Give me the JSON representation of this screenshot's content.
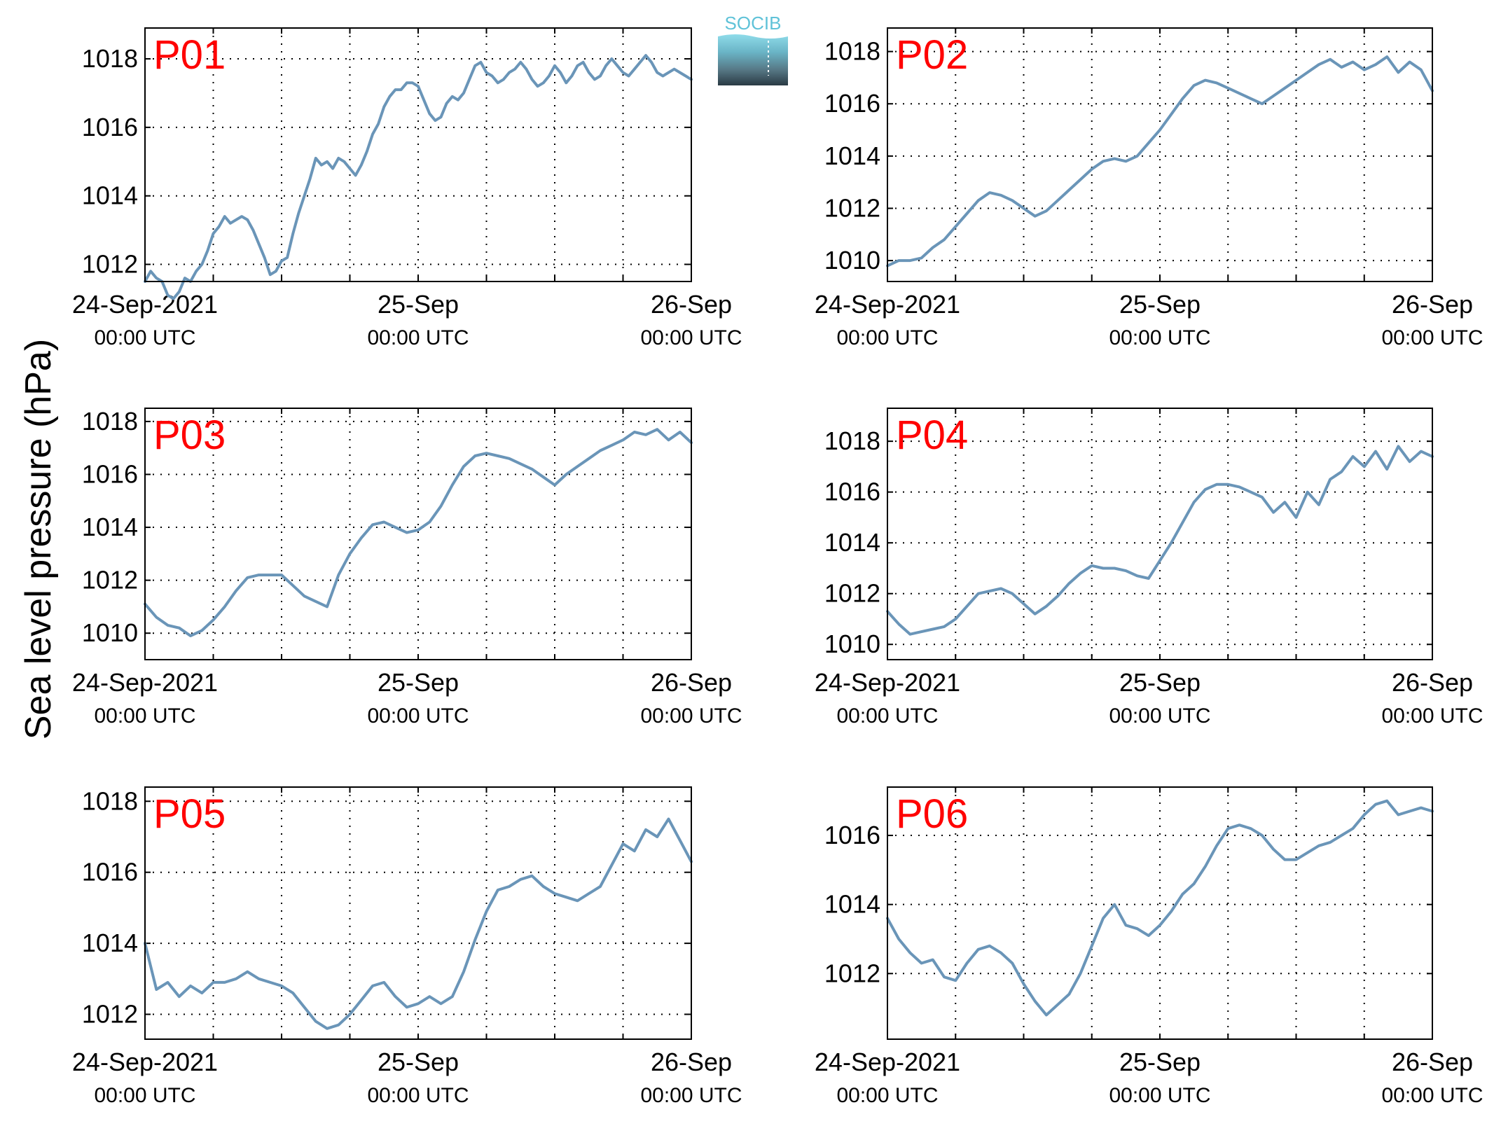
{
  "figure": {
    "ylabel": "Sea level pressure (hPa)",
    "logo_text": "SOCIB",
    "line_color": "#6a95b8",
    "panel_label_color": "#ff0000",
    "x_ticks": [
      {
        "line1": "24-Sep-2021",
        "line2": "00:00 UTC"
      },
      {
        "line1": "25-Sep",
        "line2": "00:00 UTC"
      },
      {
        "line1": "26-Sep",
        "line2": "00:00 UTC"
      }
    ]
  },
  "chart_data": [
    {
      "type": "line",
      "label": "P01",
      "x_unit": "hours since 24-Sep-2021 00:00 UTC",
      "xlim": [
        0,
        48
      ],
      "ylim": [
        1011.5,
        1018.9
      ],
      "yticks": [
        1012,
        1014,
        1016,
        1018
      ],
      "grid": "dotted",
      "x": [
        0,
        0.5,
        1,
        1.5,
        2,
        2.5,
        3,
        3.5,
        4,
        4.5,
        5,
        5.5,
        6,
        6.5,
        7,
        7.5,
        8,
        8.5,
        9,
        9.5,
        10,
        10.5,
        11,
        11.5,
        12,
        12.5,
        13,
        13.5,
        14,
        14.5,
        15,
        15.5,
        16,
        16.5,
        17,
        17.5,
        18,
        18.5,
        19,
        19.5,
        20,
        20.5,
        21,
        21.5,
        22,
        22.5,
        23,
        23.5,
        24,
        24.5,
        25,
        25.5,
        26,
        26.5,
        27,
        27.5,
        28,
        28.5,
        29,
        29.5,
        30,
        30.5,
        31,
        31.5,
        32,
        32.5,
        33,
        33.5,
        34,
        34.5,
        35,
        35.5,
        36,
        36.5,
        37,
        37.5,
        38,
        38.5,
        39,
        39.5,
        40,
        40.5,
        41,
        41.5,
        42,
        42.5,
        43,
        43.5,
        44,
        44.5,
        45,
        45.5,
        46,
        46.5,
        47,
        47.5,
        48
      ],
      "y": [
        1011.5,
        1011.8,
        1011.6,
        1011.5,
        1011.1,
        1011.0,
        1011.2,
        1011.6,
        1011.5,
        1011.8,
        1012.0,
        1012.4,
        1012.9,
        1013.1,
        1013.4,
        1013.2,
        1013.3,
        1013.4,
        1013.3,
        1013.0,
        1012.6,
        1012.2,
        1011.7,
        1011.8,
        1012.1,
        1012.2,
        1012.9,
        1013.5,
        1014.0,
        1014.5,
        1015.1,
        1014.9,
        1015.0,
        1014.8,
        1015.1,
        1015.0,
        1014.8,
        1014.6,
        1014.9,
        1015.3,
        1015.8,
        1016.1,
        1016.6,
        1016.9,
        1017.1,
        1017.1,
        1017.3,
        1017.3,
        1017.2,
        1016.8,
        1016.4,
        1016.2,
        1016.3,
        1016.7,
        1016.9,
        1016.8,
        1017.0,
        1017.4,
        1017.8,
        1017.9,
        1017.6,
        1017.5,
        1017.3,
        1017.4,
        1017.6,
        1017.7,
        1017.9,
        1017.7,
        1017.4,
        1017.2,
        1017.3,
        1017.5,
        1017.8,
        1017.6,
        1017.3,
        1017.5,
        1017.8,
        1017.9,
        1017.6,
        1017.4,
        1017.5,
        1017.8,
        1018.0,
        1017.8,
        1017.6,
        1017.5,
        1017.7,
        1017.9,
        1018.1,
        1017.9,
        1017.6,
        1017.5,
        1017.6,
        1017.7,
        1017.6,
        1017.5,
        1017.4
      ]
    },
    {
      "type": "line",
      "label": "P02",
      "x_unit": "hours since 24-Sep-2021 00:00 UTC",
      "xlim": [
        0,
        48
      ],
      "ylim": [
        1009.2,
        1018.9
      ],
      "yticks": [
        1010,
        1012,
        1014,
        1016,
        1018
      ],
      "grid": "dotted",
      "x": [
        0,
        1,
        2,
        3,
        4,
        5,
        6,
        7,
        8,
        9,
        10,
        11,
        12,
        13,
        14,
        15,
        16,
        17,
        18,
        19,
        20,
        21,
        22,
        23,
        24,
        25,
        26,
        27,
        28,
        29,
        30,
        31,
        32,
        33,
        34,
        35,
        36,
        37,
        38,
        39,
        40,
        41,
        42,
        43,
        44,
        45,
        46,
        47,
        48
      ],
      "y": [
        1009.8,
        1010.0,
        1010.0,
        1010.1,
        1010.5,
        1010.8,
        1011.3,
        1011.8,
        1012.3,
        1012.6,
        1012.5,
        1012.3,
        1012.0,
        1011.7,
        1011.9,
        1012.3,
        1012.7,
        1013.1,
        1013.5,
        1013.8,
        1013.9,
        1013.8,
        1014.0,
        1014.5,
        1015.0,
        1015.6,
        1016.2,
        1016.7,
        1016.9,
        1016.8,
        1016.6,
        1016.4,
        1016.2,
        1016.0,
        1016.3,
        1016.6,
        1016.9,
        1017.2,
        1017.5,
        1017.7,
        1017.4,
        1017.6,
        1017.3,
        1017.5,
        1017.8,
        1017.2,
        1017.6,
        1017.3,
        1016.5
      ]
    },
    {
      "type": "line",
      "label": "P03",
      "x_unit": "hours since 24-Sep-2021 00:00 UTC",
      "xlim": [
        0,
        48
      ],
      "ylim": [
        1009.0,
        1018.5
      ],
      "yticks": [
        1010,
        1012,
        1014,
        1016,
        1018
      ],
      "grid": "dotted",
      "x": [
        0,
        1,
        2,
        3,
        4,
        5,
        6,
        7,
        8,
        9,
        10,
        11,
        12,
        13,
        14,
        15,
        16,
        17,
        18,
        19,
        20,
        21,
        22,
        23,
        24,
        25,
        26,
        27,
        28,
        29,
        30,
        31,
        32,
        33,
        34,
        35,
        36,
        37,
        38,
        39,
        40,
        41,
        42,
        43,
        44,
        45,
        46,
        47,
        48
      ],
      "y": [
        1011.1,
        1010.6,
        1010.3,
        1010.2,
        1009.9,
        1010.1,
        1010.5,
        1011.0,
        1011.6,
        1012.1,
        1012.2,
        1012.2,
        1012.2,
        1011.8,
        1011.4,
        1011.2,
        1011.0,
        1012.2,
        1013.0,
        1013.6,
        1014.1,
        1014.2,
        1014.0,
        1013.8,
        1013.9,
        1014.2,
        1014.8,
        1015.6,
        1016.3,
        1016.7,
        1016.8,
        1016.7,
        1016.6,
        1016.4,
        1016.2,
        1015.9,
        1015.6,
        1016.0,
        1016.3,
        1016.6,
        1016.9,
        1017.1,
        1017.3,
        1017.6,
        1017.5,
        1017.7,
        1017.3,
        1017.6,
        1017.2
      ]
    },
    {
      "type": "line",
      "label": "P04",
      "x_unit": "hours since 24-Sep-2021 00:00 UTC",
      "xlim": [
        0,
        48
      ],
      "ylim": [
        1009.4,
        1019.3
      ],
      "yticks": [
        1010,
        1012,
        1014,
        1016,
        1018
      ],
      "grid": "dotted",
      "x": [
        0,
        1,
        2,
        3,
        4,
        5,
        6,
        7,
        8,
        9,
        10,
        11,
        12,
        13,
        14,
        15,
        16,
        17,
        18,
        19,
        20,
        21,
        22,
        23,
        24,
        25,
        26,
        27,
        28,
        29,
        30,
        31,
        32,
        33,
        34,
        35,
        36,
        37,
        38,
        39,
        40,
        41,
        42,
        43,
        44,
        45,
        46,
        47,
        48
      ],
      "y": [
        1011.3,
        1010.8,
        1010.4,
        1010.5,
        1010.6,
        1010.7,
        1011.0,
        1011.5,
        1012.0,
        1012.1,
        1012.2,
        1012.0,
        1011.6,
        1011.2,
        1011.5,
        1011.9,
        1012.4,
        1012.8,
        1013.1,
        1013.0,
        1013.0,
        1012.9,
        1012.7,
        1012.6,
        1013.3,
        1014.0,
        1014.8,
        1015.6,
        1016.1,
        1016.3,
        1016.3,
        1016.2,
        1016.0,
        1015.8,
        1015.2,
        1015.6,
        1015.0,
        1016.0,
        1015.5,
        1016.5,
        1016.8,
        1017.4,
        1017.0,
        1017.6,
        1016.9,
        1017.8,
        1017.2,
        1017.6,
        1017.4
      ]
    },
    {
      "type": "line",
      "label": "P05",
      "x_unit": "hours since 24-Sep-2021 00:00 UTC",
      "xlim": [
        0,
        48
      ],
      "ylim": [
        1011.3,
        1018.4
      ],
      "yticks": [
        1012,
        1014,
        1016,
        1018
      ],
      "grid": "dotted",
      "x": [
        0,
        1,
        2,
        3,
        4,
        5,
        6,
        7,
        8,
        9,
        10,
        11,
        12,
        13,
        14,
        15,
        16,
        17,
        18,
        19,
        20,
        21,
        22,
        23,
        24,
        25,
        26,
        27,
        28,
        29,
        30,
        31,
        32,
        33,
        34,
        35,
        36,
        37,
        38,
        39,
        40,
        41,
        42,
        43,
        44,
        45,
        46,
        47,
        48
      ],
      "y": [
        1014.0,
        1012.7,
        1012.9,
        1012.5,
        1012.8,
        1012.6,
        1012.9,
        1012.9,
        1013.0,
        1013.2,
        1013.0,
        1012.9,
        1012.8,
        1012.6,
        1012.2,
        1011.8,
        1011.6,
        1011.7,
        1012.0,
        1012.4,
        1012.8,
        1012.9,
        1012.5,
        1012.2,
        1012.3,
        1012.5,
        1012.3,
        1012.5,
        1013.2,
        1014.1,
        1014.9,
        1015.5,
        1015.6,
        1015.8,
        1015.9,
        1015.6,
        1015.4,
        1015.3,
        1015.2,
        1015.4,
        1015.6,
        1016.2,
        1016.8,
        1016.6,
        1017.2,
        1017.0,
        1017.5,
        1016.9,
        1016.3
      ]
    },
    {
      "type": "line",
      "label": "P06",
      "x_unit": "hours since 24-Sep-2021 00:00 UTC",
      "xlim": [
        0,
        48
      ],
      "ylim": [
        1010.1,
        1017.4
      ],
      "yticks": [
        1012,
        1014,
        1016
      ],
      "grid": "dotted",
      "x": [
        0,
        1,
        2,
        3,
        4,
        5,
        6,
        7,
        8,
        9,
        10,
        11,
        12,
        13,
        14,
        15,
        16,
        17,
        18,
        19,
        20,
        21,
        22,
        23,
        24,
        25,
        26,
        27,
        28,
        29,
        30,
        31,
        32,
        33,
        34,
        35,
        36,
        37,
        38,
        39,
        40,
        41,
        42,
        43,
        44,
        45,
        46,
        47,
        48
      ],
      "y": [
        1013.6,
        1013.0,
        1012.6,
        1012.3,
        1012.4,
        1011.9,
        1011.8,
        1012.3,
        1012.7,
        1012.8,
        1012.6,
        1012.3,
        1011.7,
        1011.2,
        1010.8,
        1011.1,
        1011.4,
        1012.0,
        1012.8,
        1013.6,
        1014.0,
        1013.4,
        1013.3,
        1013.1,
        1013.4,
        1013.8,
        1014.3,
        1014.6,
        1015.1,
        1015.7,
        1016.2,
        1016.3,
        1016.2,
        1016.0,
        1015.6,
        1015.3,
        1015.3,
        1015.5,
        1015.7,
        1015.8,
        1016.0,
        1016.2,
        1016.6,
        1016.9,
        1017.0,
        1016.6,
        1016.7,
        1016.8,
        1016.7
      ]
    }
  ]
}
